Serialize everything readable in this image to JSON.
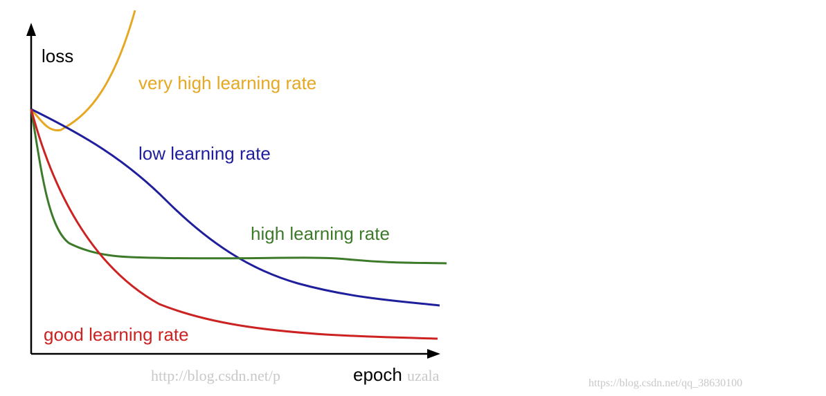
{
  "axes": {
    "y_label": "loss",
    "x_label": "epoch"
  },
  "curves": {
    "very_high": "very high learning rate",
    "low": "low learning rate",
    "high": "high learning rate",
    "good": "good learning rate"
  },
  "watermarks": {
    "left_start": "http://blog.csdn.net/p",
    "left_end": "uzala",
    "right": "https://blog.csdn.net/qq_38630100"
  }
}
